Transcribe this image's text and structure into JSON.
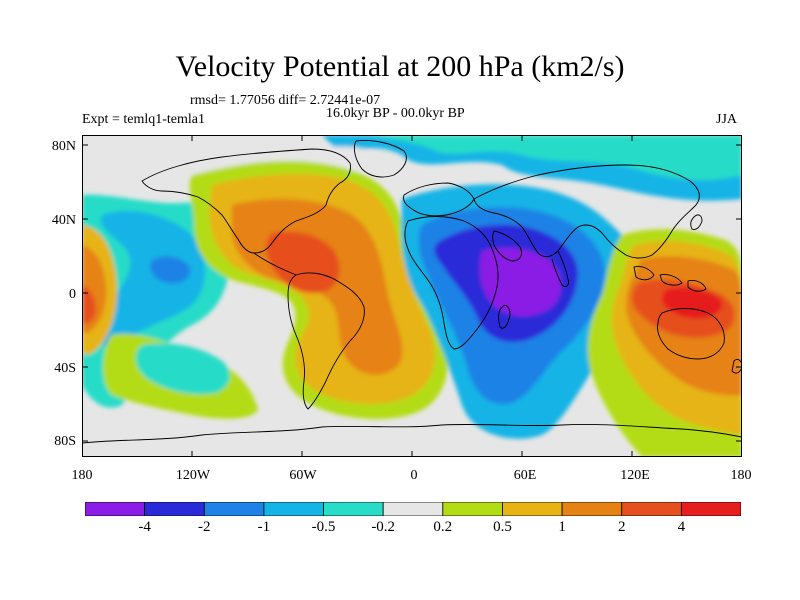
{
  "title": "Velocity Potential at 200 hPa (km2/s)",
  "stats_line": "rmsd= 1.77056 diff= 2.72441e-07",
  "period": "16.0kyr BP - 00.0kyr BP",
  "experiment": "Expt = temlq1-temla1",
  "season": "JJA",
  "y_axis": {
    "ticks": [
      "80N",
      "40N",
      "0",
      "40S",
      "80S"
    ]
  },
  "x_axis": {
    "ticks": [
      "180",
      "120W",
      "60W",
      "0",
      "60E",
      "120E",
      "180"
    ]
  },
  "colorbar": {
    "labels": [
      "-4",
      "-2",
      "-1",
      "-0.5",
      "-0.2",
      "0.2",
      "0.5",
      "1",
      "2",
      "4"
    ],
    "colors": [
      "#8a1ee6",
      "#2a2ad8",
      "#1e82e6",
      "#14b4e6",
      "#28dcc8",
      "#e6e6e6",
      "#b4dc14",
      "#e6b414",
      "#e68214",
      "#e6501e",
      "#e61e1e"
    ]
  },
  "field_colors": {
    "background_neutral": "#e6e6e6",
    "coastline": "#000000"
  }
}
